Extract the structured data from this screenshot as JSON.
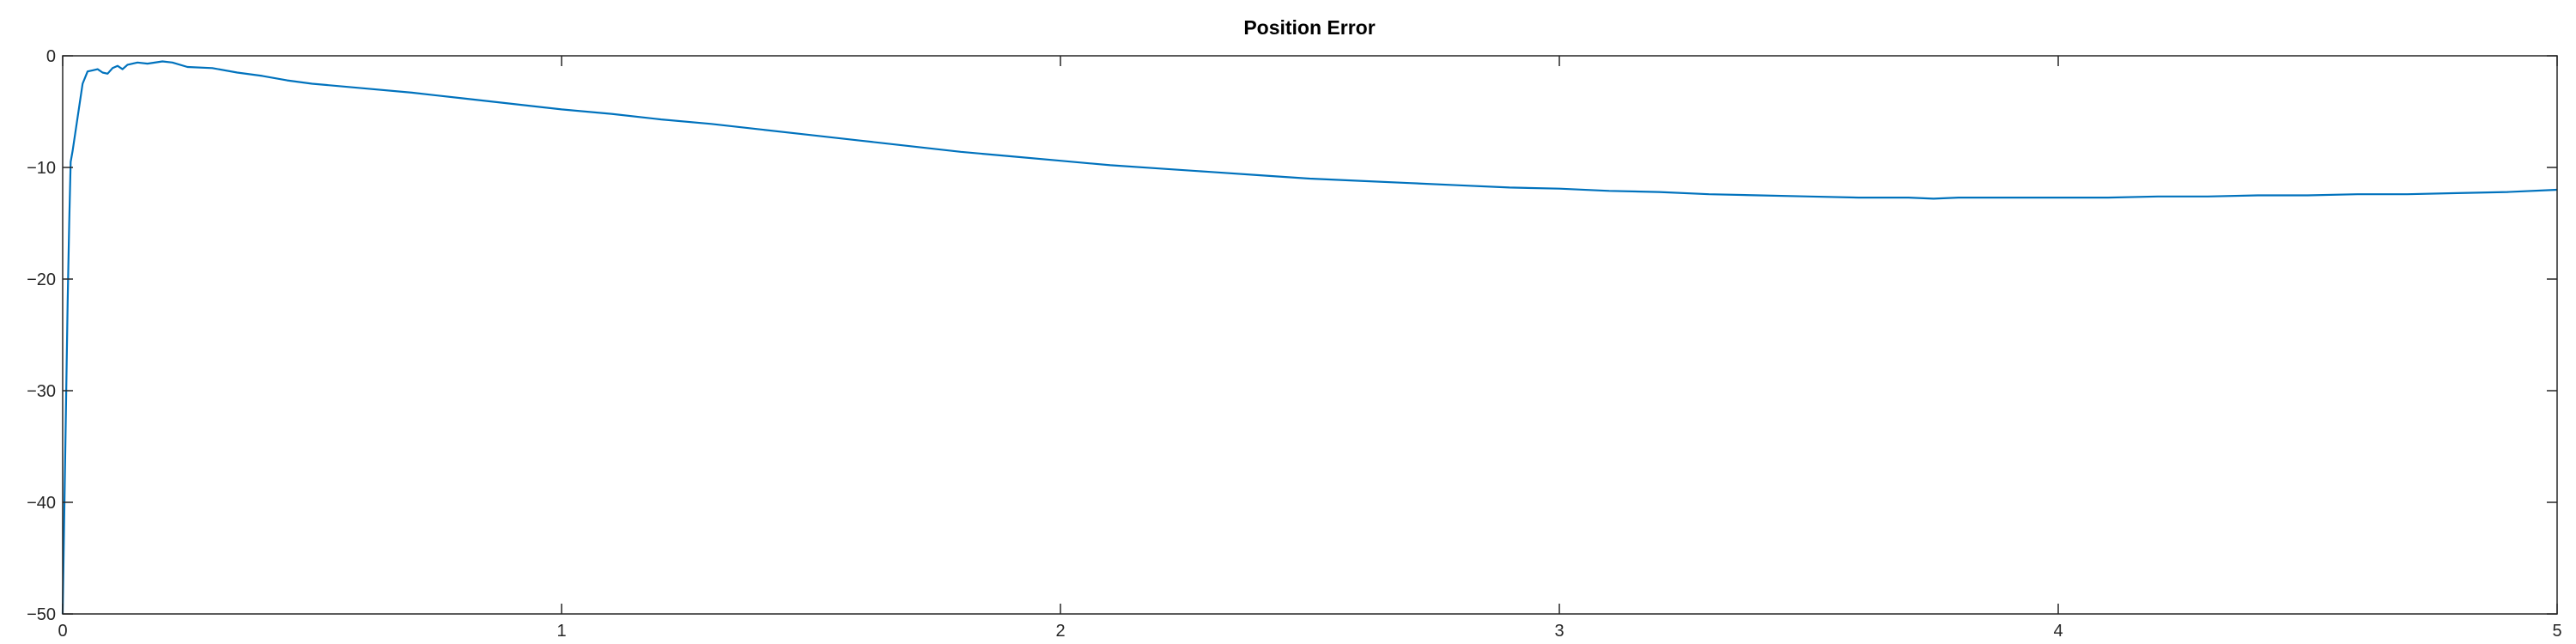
{
  "chart_data": {
    "type": "line",
    "title": "Position Error",
    "xlabel": "",
    "ylabel": "",
    "xlim": [
      0,
      5
    ],
    "ylim": [
      -50,
      0
    ],
    "xticks": [
      0,
      1,
      2,
      3,
      4,
      5
    ],
    "yticks": [
      0,
      -10,
      -20,
      -30,
      -40,
      -50
    ],
    "xtick_labels": [
      "0",
      "1",
      "2",
      "3",
      "4",
      "5"
    ],
    "ytick_labels": [
      "0",
      "−10",
      "−20",
      "−30",
      "−40",
      "−50"
    ],
    "grid": false,
    "line_color": "#0072bd",
    "series": [
      {
        "x": [
          0,
          0.005,
          0.01,
          0.013,
          0.016,
          0.02,
          0.025,
          0.03,
          0.04,
          0.05,
          0.06,
          0.07,
          0.08,
          0.09,
          0.1,
          0.11,
          0.12,
          0.13,
          0.15,
          0.17,
          0.2,
          0.22,
          0.25,
          0.3,
          0.35,
          0.4,
          0.45,
          0.5,
          0.6,
          0.7,
          0.8,
          0.9,
          1.0,
          1.1,
          1.2,
          1.3,
          1.4,
          1.5,
          1.6,
          1.7,
          1.8,
          1.9,
          2.0,
          2.1,
          2.2,
          2.3,
          2.4,
          2.5,
          2.6,
          2.7,
          2.8,
          2.9,
          3.0,
          3.1,
          3.2,
          3.3,
          3.4,
          3.5,
          3.6,
          3.7,
          3.75,
          3.8,
          3.9,
          4.0,
          4.1,
          4.2,
          4.3,
          4.4,
          4.5,
          4.6,
          4.7,
          4.8,
          4.9,
          5.0
        ],
        "values": [
          -50,
          -36,
          -22,
          -15,
          -9.5,
          -8.5,
          -7,
          -5.5,
          -2.5,
          -1.4,
          -1.3,
          -1.2,
          -1.5,
          -1.6,
          -1.1,
          -0.9,
          -1.2,
          -0.8,
          -0.6,
          -0.7,
          -0.5,
          -0.6,
          -1.0,
          -1.1,
          -1.5,
          -1.8,
          -2.2,
          -2.5,
          -2.9,
          -3.3,
          -3.8,
          -4.3,
          -4.8,
          -5.2,
          -5.7,
          -6.1,
          -6.6,
          -7.1,
          -7.6,
          -8.1,
          -8.6,
          -9.0,
          -9.4,
          -9.8,
          -10.1,
          -10.4,
          -10.7,
          -11.0,
          -11.2,
          -11.4,
          -11.6,
          -11.8,
          -11.9,
          -12.1,
          -12.2,
          -12.4,
          -12.5,
          -12.6,
          -12.7,
          -12.7,
          -12.8,
          -12.7,
          -12.7,
          -12.7,
          -12.7,
          -12.6,
          -12.6,
          -12.5,
          -12.5,
          -12.4,
          -12.4,
          -12.3,
          -12.2,
          -12.0
        ]
      }
    ]
  }
}
